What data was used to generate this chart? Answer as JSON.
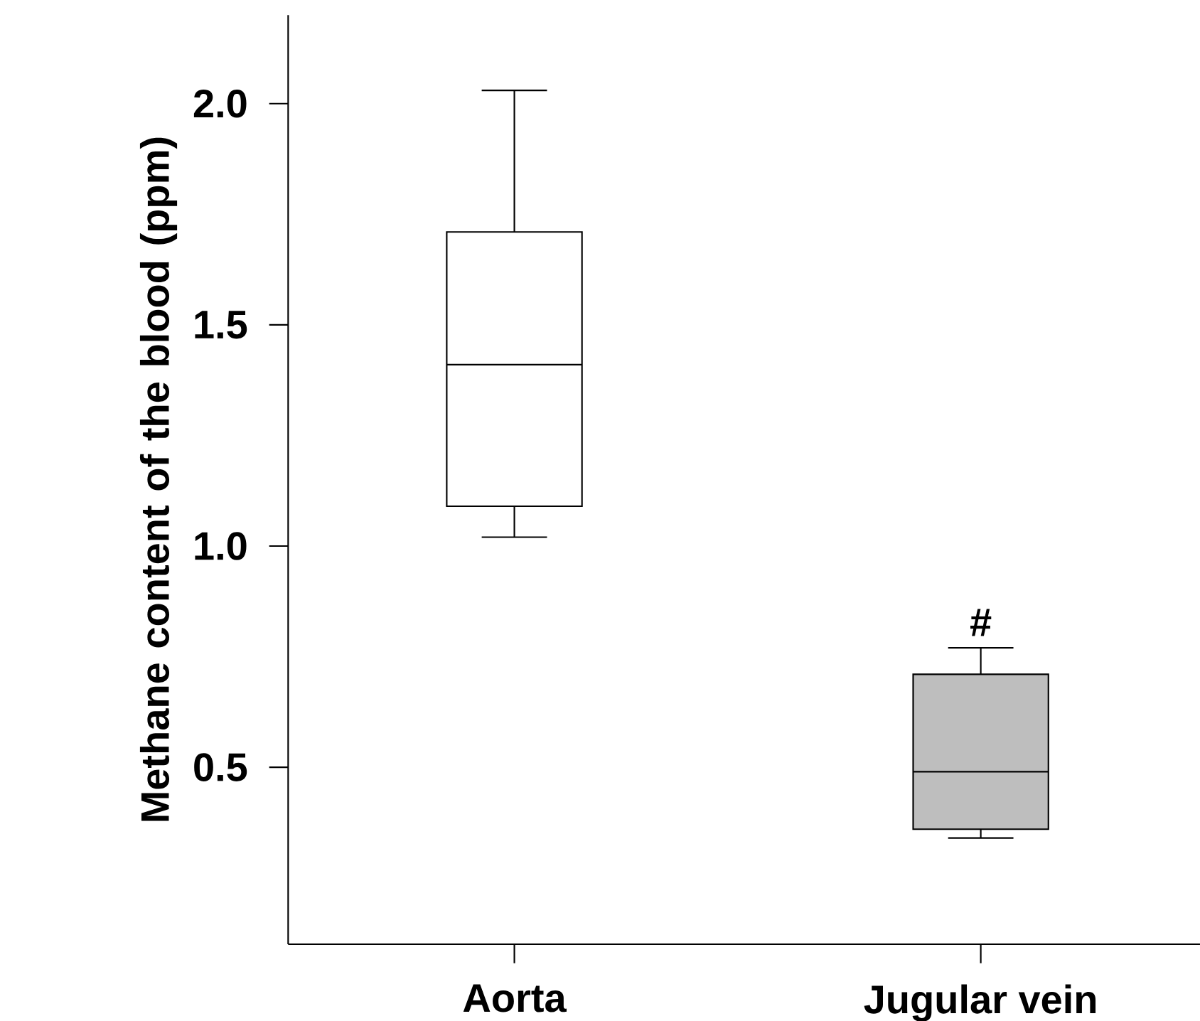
{
  "chart_data": {
    "type": "box",
    "ylabel": "Methane content of the blood (ppm)",
    "categories": [
      "Aorta",
      "Jugular vein"
    ],
    "boxes": [
      {
        "low": 1.02,
        "q1": 1.09,
        "median": 1.41,
        "q3": 1.71,
        "high": 2.03
      },
      {
        "low": 0.34,
        "q1": 0.36,
        "median": 0.49,
        "q3": 0.71,
        "high": 0.77
      }
    ],
    "colors": [
      "#ffffff",
      "#bebebe"
    ],
    "ylim": [
      0.1,
      2.2
    ],
    "yticks": [
      {
        "value": 0.5,
        "label": "0.5"
      },
      {
        "value": 1,
        "label": "1.0"
      },
      {
        "value": 1.5,
        "label": "1.5"
      },
      {
        "value": 2,
        "label": "2.0"
      }
    ],
    "annotations": [
      "#"
    ]
  }
}
